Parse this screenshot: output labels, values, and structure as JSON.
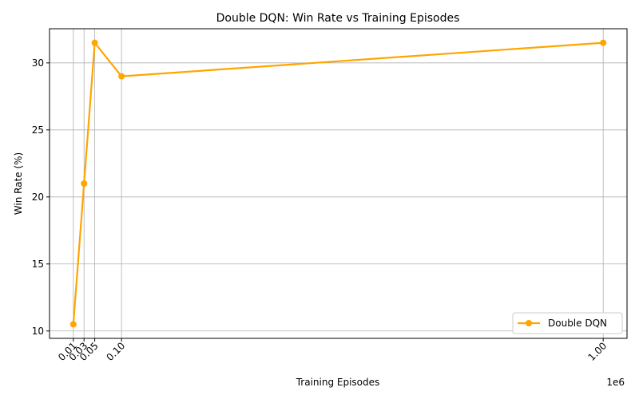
{
  "chart_data": {
    "type": "line",
    "title": "Double DQN: Win Rate vs Training Episodes",
    "xlabel": "Training Episodes",
    "ylabel": "Win Rate (%)",
    "x_offset_text": "1e6",
    "xlim": [
      -0.0345,
      1.0445
    ],
    "ylim": [
      9.45,
      32.55
    ],
    "x_ticks": [
      0.01,
      0.03,
      0.05,
      0.1,
      1.0
    ],
    "x_tick_labels": [
      "0.01",
      "0.03",
      "0.05",
      "0.10",
      "1.00"
    ],
    "y_ticks": [
      10,
      15,
      20,
      25,
      30
    ],
    "y_tick_labels": [
      "10",
      "15",
      "20",
      "25",
      "30"
    ],
    "grid": true,
    "legend_position": "lower-right",
    "series": [
      {
        "name": "Double DQN",
        "color": "#FFA500",
        "marker": "circle",
        "x": [
          0.01,
          0.03,
          0.05,
          0.1,
          1.0
        ],
        "y": [
          10.5,
          21.0,
          31.5,
          29.0,
          31.5
        ]
      }
    ]
  }
}
